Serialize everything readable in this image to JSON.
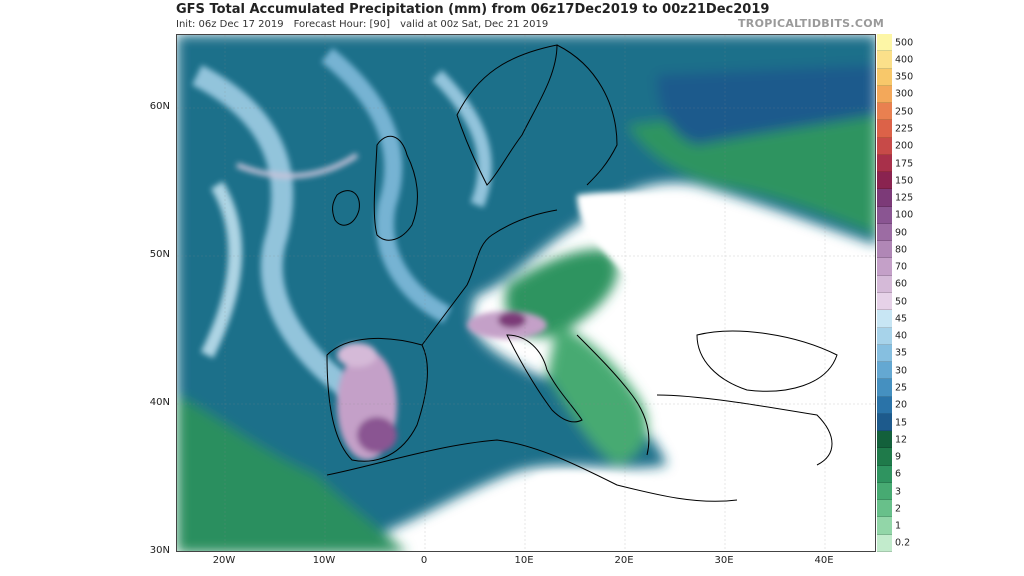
{
  "header": {
    "title": "GFS Total Accumulated Precipitation (mm) from 06z17Dec2019 to 00z21Dec2019",
    "init": "Init: 06z Dec 17 2019",
    "forecast_hour": "Forecast Hour: [90]",
    "valid": "valid at 00z Sat, Dec 21 2019",
    "brand": "TROPICALTIDBITS.COM"
  },
  "axes": {
    "lat_labels": [
      "60N",
      "50N",
      "40N",
      "30N"
    ],
    "lon_labels": [
      "20W",
      "10W",
      "0",
      "10E",
      "20E",
      "30E",
      "40E"
    ]
  },
  "colorbar": {
    "labels": [
      "500",
      "400",
      "350",
      "300",
      "250",
      "225",
      "200",
      "175",
      "150",
      "125",
      "100",
      "90",
      "80",
      "70",
      "60",
      "50",
      "45",
      "40",
      "35",
      "30",
      "25",
      "20",
      "15",
      "12",
      "9",
      "6",
      "3",
      "2",
      "1",
      "0.2"
    ],
    "colors": [
      "#fdf6a6",
      "#fbe08a",
      "#f8c86a",
      "#f3a85a",
      "#e98050",
      "#dc6248",
      "#c74a48",
      "#a8304a",
      "#8a2350",
      "#7c3a78",
      "#8a5592",
      "#9c6ca3",
      "#b087b6",
      "#c4a0c8",
      "#d5bad8",
      "#e6d2e8",
      "#c8e6f4",
      "#a7d3ea",
      "#86bfe0",
      "#64a8d2",
      "#4590c0",
      "#2a73a8",
      "#1d5a8c",
      "#13603b",
      "#1f7a4a",
      "#2f9460",
      "#47aa72",
      "#68c08a",
      "#92d6a8",
      "#c2ebcc"
    ],
    "colors_note": ""
  }
}
